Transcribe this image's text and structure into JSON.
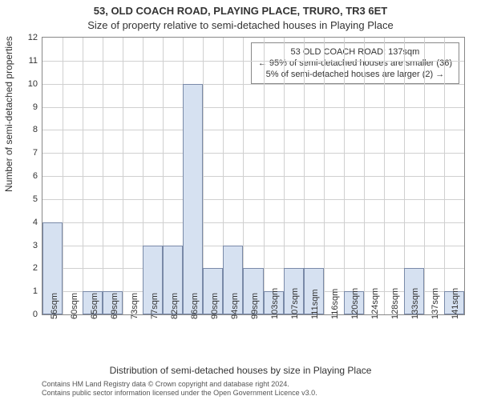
{
  "title_line1": "53, OLD COACH ROAD, PLAYING PLACE, TRURO, TR3 6ET",
  "title_line2": "Size of property relative to semi-detached houses in Playing Place",
  "ylabel": "Number of semi-detached properties",
  "xlabel": "Distribution of semi-detached houses by size in Playing Place",
  "footer_line1": "Contains HM Land Registry data © Crown copyright and database right 2024.",
  "footer_line2": "Contains public sector information licensed under the Open Government Licence v3.0.",
  "annotation": {
    "line1": "53 OLD COACH ROAD: 137sqm",
    "line2": "← 95% of semi-detached houses are smaller (36)",
    "line3": "5% of semi-detached houses are larger (2) →"
  },
  "chart": {
    "type": "histogram",
    "bar_fill": "#d6e1f1",
    "bar_border": "#7a8aa8",
    "highlight_fill": "#a9c1e6",
    "highlight_border": "#4e6ea8",
    "grid_color": "#d0d0d0",
    "axis_color": "#888888",
    "background_color": "#ffffff",
    "ylim": [
      0,
      12
    ],
    "ytick_step": 1,
    "x_categories": [
      "56sqm",
      "60sqm",
      "65sqm",
      "69sqm",
      "73sqm",
      "77sqm",
      "82sqm",
      "86sqm",
      "90sqm",
      "94sqm",
      "99sqm",
      "103sqm",
      "107sqm",
      "111sqm",
      "116sqm",
      "120sqm",
      "124sqm",
      "128sqm",
      "133sqm",
      "137sqm",
      "141sqm"
    ],
    "values": [
      4,
      0,
      1,
      1,
      0,
      3,
      3,
      10,
      2,
      3,
      2,
      1,
      2,
      2,
      0,
      1,
      0,
      0,
      2,
      0,
      1
    ],
    "highlight_index": 19,
    "title_fontsize": 13,
    "label_fontsize": 12,
    "tick_fontsize": 11,
    "annotation_fontsize": 11,
    "bar_gap_ratio": 0.0
  }
}
